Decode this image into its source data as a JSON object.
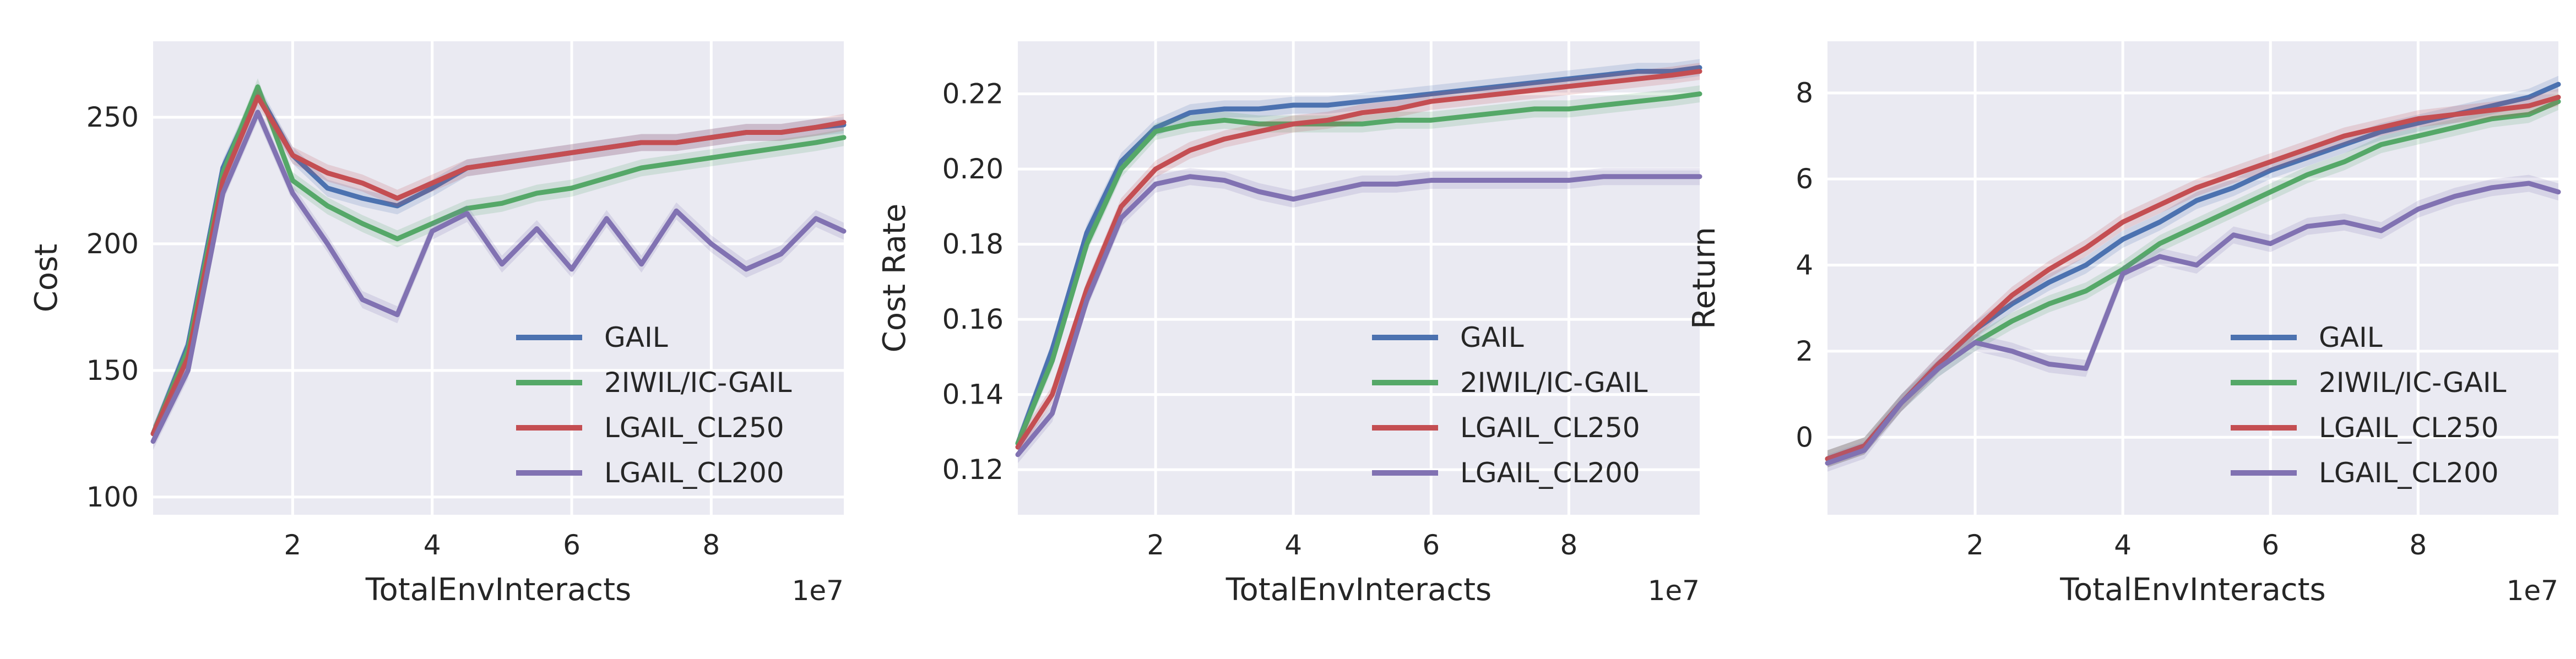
{
  "colors": {
    "panel_bg": "#eaeaf2",
    "grid": "#ffffff",
    "text": "#262626",
    "GAIL": "#4c72b0",
    "2IWIL/IC-GAIL": "#55a868",
    "LGAIL_CL250": "#c44e52",
    "LGAIL_CL200": "#8172b2"
  },
  "chart_data": [
    {
      "type": "line",
      "xlabel": "TotalEnvInteracts",
      "ylabel": "Cost",
      "x_scale_label": "1e7",
      "xlim": [
        0.0,
        9.9
      ],
      "ylim": [
        93,
        280
      ],
      "xticks": [
        2,
        4,
        6,
        8
      ],
      "yticks": [
        100,
        150,
        200,
        250
      ],
      "grid": true,
      "legend": "lower-right",
      "x": [
        0.0,
        0.5,
        1.0,
        1.5,
        2.0,
        2.5,
        3.0,
        3.5,
        4.0,
        4.5,
        5.0,
        5.5,
        6.0,
        6.5,
        7.0,
        7.5,
        8.0,
        8.5,
        9.0,
        9.5,
        9.9
      ],
      "series": [
        {
          "name": "GAIL",
          "values": [
            125,
            160,
            230,
            260,
            235,
            222,
            218,
            215,
            222,
            230,
            232,
            234,
            236,
            238,
            240,
            240,
            242,
            244,
            244,
            246,
            247
          ]
        },
        {
          "name": "2IWIL/IC-GAIL",
          "values": [
            125,
            158,
            228,
            262,
            225,
            215,
            208,
            202,
            208,
            214,
            216,
            220,
            222,
            226,
            230,
            232,
            234,
            236,
            238,
            240,
            242
          ]
        },
        {
          "name": "LGAIL_CL250",
          "values": [
            125,
            155,
            225,
            258,
            235,
            228,
            224,
            218,
            224,
            230,
            232,
            234,
            236,
            238,
            240,
            240,
            242,
            244,
            244,
            246,
            248
          ]
        },
        {
          "name": "LGAIL_CL200",
          "values": [
            122,
            150,
            220,
            252,
            220,
            200,
            178,
            172,
            205,
            212,
            192,
            206,
            190,
            210,
            192,
            213,
            200,
            190,
            196,
            210,
            205
          ]
        }
      ]
    },
    {
      "type": "line",
      "xlabel": "TotalEnvInteracts",
      "ylabel": "Cost Rate",
      "x_scale_label": "1e7",
      "xlim": [
        0.0,
        9.9
      ],
      "ylim": [
        0.108,
        0.234
      ],
      "xticks": [
        2,
        4,
        6,
        8
      ],
      "yticks": [
        0.12,
        0.14,
        0.16,
        0.18,
        0.2,
        0.22
      ],
      "grid": true,
      "legend": "lower-right",
      "x": [
        0.0,
        0.5,
        1.0,
        1.5,
        2.0,
        2.5,
        3.0,
        3.5,
        4.0,
        4.5,
        5.0,
        5.5,
        6.0,
        6.5,
        7.0,
        7.5,
        8.0,
        8.5,
        9.0,
        9.5,
        9.9
      ],
      "series": [
        {
          "name": "GAIL",
          "values": [
            0.127,
            0.152,
            0.183,
            0.202,
            0.211,
            0.215,
            0.216,
            0.216,
            0.217,
            0.217,
            0.218,
            0.219,
            0.22,
            0.221,
            0.222,
            0.223,
            0.224,
            0.225,
            0.226,
            0.226,
            0.227
          ]
        },
        {
          "name": "2IWIL/IC-GAIL",
          "values": [
            0.127,
            0.149,
            0.18,
            0.2,
            0.21,
            0.212,
            0.213,
            0.212,
            0.212,
            0.212,
            0.212,
            0.213,
            0.213,
            0.214,
            0.215,
            0.216,
            0.216,
            0.217,
            0.218,
            0.219,
            0.22
          ]
        },
        {
          "name": "LGAIL_CL250",
          "values": [
            0.126,
            0.14,
            0.168,
            0.19,
            0.2,
            0.205,
            0.208,
            0.21,
            0.212,
            0.213,
            0.215,
            0.216,
            0.218,
            0.219,
            0.22,
            0.221,
            0.222,
            0.223,
            0.224,
            0.225,
            0.226
          ]
        },
        {
          "name": "LGAIL_CL200",
          "values": [
            0.124,
            0.135,
            0.165,
            0.187,
            0.196,
            0.198,
            0.197,
            0.194,
            0.192,
            0.194,
            0.196,
            0.196,
            0.197,
            0.197,
            0.197,
            0.197,
            0.197,
            0.198,
            0.198,
            0.198,
            0.198
          ]
        }
      ]
    },
    {
      "type": "line",
      "xlabel": "TotalEnvInteracts",
      "ylabel": "Return",
      "x_scale_label": "1e7",
      "xlim": [
        0.0,
        9.9
      ],
      "ylim": [
        -1.8,
        9.2
      ],
      "xticks": [
        2,
        4,
        6,
        8
      ],
      "yticks": [
        0,
        2,
        4,
        6,
        8
      ],
      "grid": true,
      "legend": "lower-right",
      "x": [
        0.0,
        0.5,
        1.0,
        1.5,
        2.0,
        2.5,
        3.0,
        3.5,
        4.0,
        4.5,
        5.0,
        5.5,
        6.0,
        6.5,
        7.0,
        7.5,
        8.0,
        8.5,
        9.0,
        9.5,
        9.9
      ],
      "series": [
        {
          "name": "GAIL",
          "values": [
            -0.5,
            -0.2,
            0.8,
            1.7,
            2.5,
            3.1,
            3.6,
            4.0,
            4.6,
            5.0,
            5.5,
            5.8,
            6.2,
            6.5,
            6.8,
            7.1,
            7.3,
            7.5,
            7.7,
            7.9,
            8.2
          ]
        },
        {
          "name": "2IWIL/IC-GAIL",
          "values": [
            -0.5,
            -0.2,
            0.8,
            1.6,
            2.2,
            2.7,
            3.1,
            3.4,
            3.9,
            4.5,
            4.9,
            5.3,
            5.7,
            6.1,
            6.4,
            6.8,
            7.0,
            7.2,
            7.4,
            7.5,
            7.8
          ]
        },
        {
          "name": "LGAIL_CL250",
          "values": [
            -0.5,
            -0.2,
            0.8,
            1.7,
            2.5,
            3.3,
            3.9,
            4.4,
            5.0,
            5.4,
            5.8,
            6.1,
            6.4,
            6.7,
            7.0,
            7.2,
            7.4,
            7.5,
            7.6,
            7.7,
            7.9
          ]
        },
        {
          "name": "LGAIL_CL200",
          "values": [
            -0.6,
            -0.3,
            0.8,
            1.6,
            2.2,
            2.0,
            1.7,
            1.6,
            3.8,
            4.2,
            4.0,
            4.7,
            4.5,
            4.9,
            5.0,
            4.8,
            5.3,
            5.6,
            5.8,
            5.9,
            5.7
          ]
        }
      ]
    }
  ]
}
